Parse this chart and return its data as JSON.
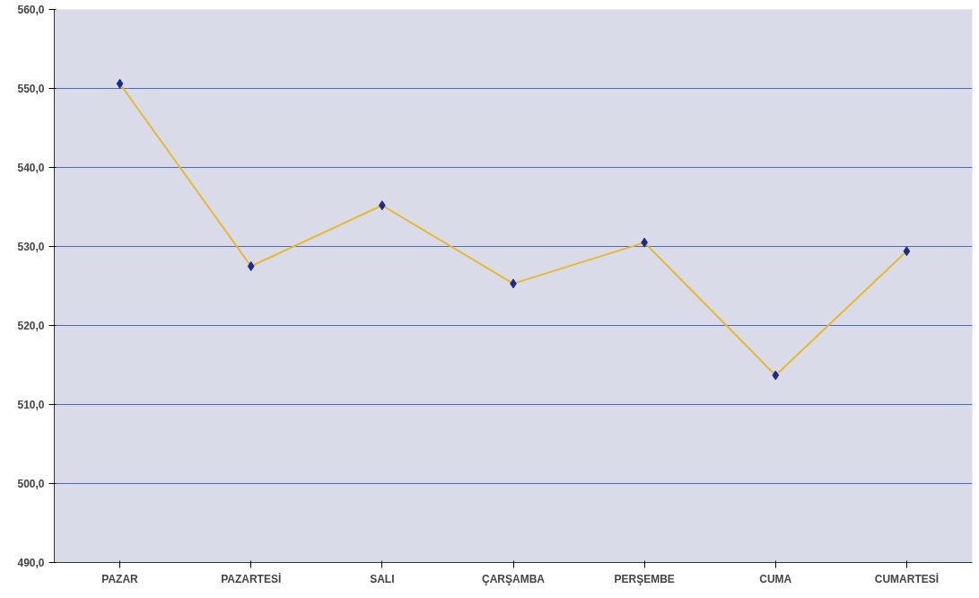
{
  "chart_data": {
    "type": "line",
    "categories": [
      "PAZAR",
      "PAZARTESİ",
      "SALI",
      "ÇARŞAMBA",
      "PERŞEMBE",
      "CUMA",
      "CUMARTESİ"
    ],
    "series": [
      {
        "color": "#e8b830",
        "values": [
          550.6,
          527.5,
          535.2,
          525.3,
          530.5,
          513.7,
          529.4
        ]
      }
    ],
    "marker": "diamond",
    "ylim": [
      490,
      560
    ],
    "yticks": [
      {
        "value": 490,
        "label": "490,0"
      },
      {
        "value": 500,
        "label": "500,0"
      },
      {
        "value": 510,
        "label": "510,0"
      },
      {
        "value": 520,
        "label": "520,0"
      },
      {
        "value": 530,
        "label": "530,0"
      },
      {
        "value": 540,
        "label": "540,0"
      },
      {
        "value": 550,
        "label": "550,0"
      },
      {
        "value": 560,
        "label": "560,0"
      }
    ],
    "grid": "y"
  }
}
